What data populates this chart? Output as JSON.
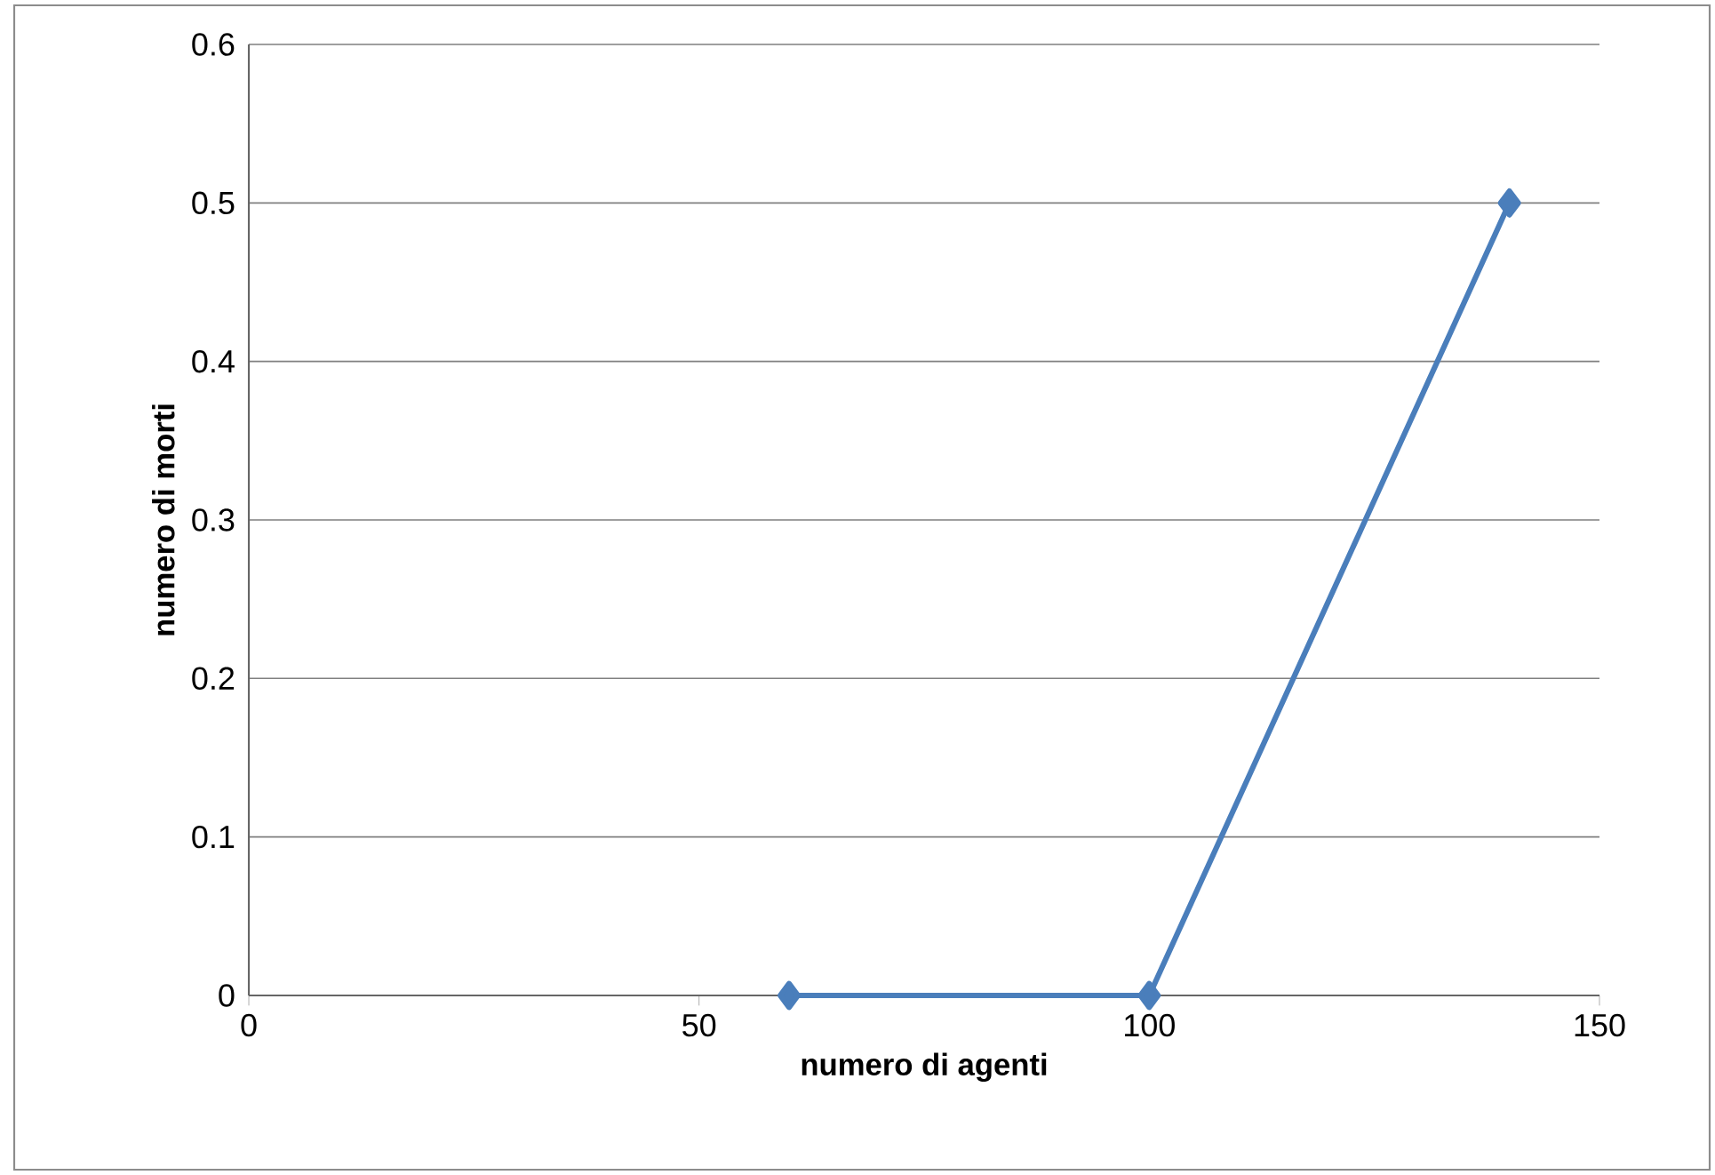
{
  "chart_data": {
    "type": "line",
    "xlabel": "numero di agenti",
    "ylabel": "numero di morti",
    "x": [
      60,
      100,
      140
    ],
    "series": [
      {
        "color": "#4a7ebb",
        "values": [
          0,
          0,
          0.5
        ]
      }
    ],
    "xlim": [
      0,
      150
    ],
    "xticks": [
      0,
      50,
      100,
      150
    ],
    "ylim": [
      0,
      0.6
    ],
    "yticks": [
      0,
      0.1,
      0.2,
      0.3,
      0.4,
      0.5,
      0.6
    ],
    "grid": "y",
    "marker": "diamond",
    "line_style": "solid"
  }
}
